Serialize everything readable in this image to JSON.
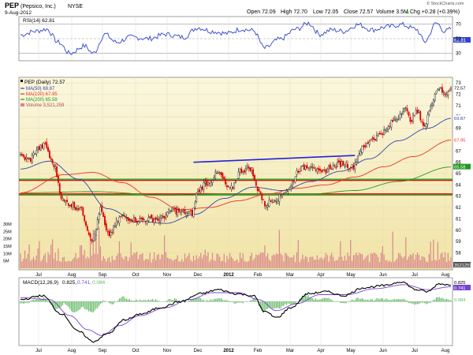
{
  "header": {
    "ticker": "PEP",
    "company": "(Pepsico, Inc.)",
    "exchange": "NYSE",
    "date": "9-Aug-2012",
    "open": "Open 72.09",
    "high": "High 72.70",
    "low": "Low 72.05",
    "close": "Close 72.57",
    "volume": "Volume 3.5M",
    "chg": "Chg +0.28 (+0.39%)",
    "chg_arrow": "▲",
    "brand": "© StockCharts.com"
  },
  "legends": {
    "rsi": "RSI(14) 62.81",
    "main": "PEP (Daily) 72.57",
    "ma50": "MA(50) 69.87",
    "ma100": "MA(100) 67.95",
    "ma200": "MA(200) 65.58",
    "volume": "Volume 3,521,259",
    "macd_name": "MACD(12,26,9)",
    "macd_v1": "0.825,",
    "macd_v2": "0.741,",
    "macd_v3": "0.084"
  },
  "badges": {
    "rsi_last": "62.81",
    "price_last": "72.57",
    "ma50": "69.87",
    "ma100": "67.95",
    "ma200": "65.58",
    "volume": "3521259",
    "macd": "0.825",
    "signal": "0.741",
    "hist": "0.084"
  },
  "colors": {
    "price_bg_top": "#fbf7df",
    "price_bg_bottom": "#f1e4a6",
    "up": "#111111",
    "down": "#e10000",
    "ma50": "#3344aa",
    "ma100": "#ee3322",
    "ma200": "#229922",
    "volume": "#d9868c",
    "rsi": "#3344cc",
    "trend": "#2222dd",
    "hline_red": "#ee0000",
    "hline_green": "#22aa22",
    "macd": "#000000",
    "macd_signal": "#7744cc",
    "macd_hist": "#66bb66"
  },
  "chart_data": {
    "type": "candlestick",
    "title": "PEP (Pepsico, Inc.) NYSE",
    "x_tick_labels": [
      "Jul",
      "Aug",
      "Sep",
      "Oct",
      "Nov",
      "Dec",
      "2012",
      "Feb",
      "Mar",
      "Apr",
      "May",
      "Jun",
      "Jul",
      "Aug"
    ],
    "price_axis_labels": [
      "58",
      "59",
      "60",
      "61",
      "62",
      "63",
      "64",
      "65",
      "66",
      "67",
      "68",
      "69",
      "70",
      "71",
      "72",
      "73"
    ],
    "volume_axis_labels": [
      "5M",
      "10M",
      "15M",
      "20M",
      "25M",
      "30M"
    ],
    "rsi_axis_labels": [
      "30",
      "50",
      "70"
    ],
    "ylim_price": [
      56.5,
      73.5
    ],
    "ylim_rsi": [
      20,
      80
    ],
    "ylim_macd": [
      -2.2,
      1.2
    ],
    "price_anchors": [
      {
        "t": 0,
        "p": 66.5
      },
      {
        "t": 6,
        "p": 66.2
      },
      {
        "t": 12,
        "p": 67.2
      },
      {
        "t": 17,
        "p": 67.5
      },
      {
        "t": 22,
        "p": 65.9
      },
      {
        "t": 30,
        "p": 62.5
      },
      {
        "t": 40,
        "p": 62.0
      },
      {
        "t": 50,
        "p": 59.2
      },
      {
        "t": 55,
        "p": 61.8
      },
      {
        "t": 60,
        "p": 59.6
      },
      {
        "t": 70,
        "p": 61.2
      },
      {
        "t": 80,
        "p": 60.9
      },
      {
        "t": 95,
        "p": 61.0
      },
      {
        "t": 105,
        "p": 61.7
      },
      {
        "t": 118,
        "p": 61.5
      },
      {
        "t": 122,
        "p": 63.5
      },
      {
        "t": 128,
        "p": 64.2
      },
      {
        "t": 136,
        "p": 65.0
      },
      {
        "t": 144,
        "p": 63.6
      },
      {
        "t": 152,
        "p": 65.3
      },
      {
        "t": 158,
        "p": 65.5
      },
      {
        "t": 163,
        "p": 63.7
      },
      {
        "t": 168,
        "p": 62.3
      },
      {
        "t": 176,
        "p": 62.8
      },
      {
        "t": 184,
        "p": 63.6
      },
      {
        "t": 192,
        "p": 65.4
      },
      {
        "t": 200,
        "p": 65.8
      },
      {
        "t": 206,
        "p": 65.0
      },
      {
        "t": 214,
        "p": 65.6
      },
      {
        "t": 222,
        "p": 65.9
      },
      {
        "t": 228,
        "p": 65.6
      },
      {
        "t": 235,
        "p": 67.2
      },
      {
        "t": 242,
        "p": 68.1
      },
      {
        "t": 250,
        "p": 68.7
      },
      {
        "t": 258,
        "p": 69.8
      },
      {
        "t": 264,
        "p": 70.8
      },
      {
        "t": 268,
        "p": 69.8
      },
      {
        "t": 273,
        "p": 70.4
      },
      {
        "t": 278,
        "p": 69.2
      },
      {
        "t": 283,
        "p": 71.4
      },
      {
        "t": 287,
        "p": 72.6
      },
      {
        "t": 292,
        "p": 72.0
      },
      {
        "t": 296,
        "p": 72.57
      }
    ],
    "ma50_anchors": [
      {
        "t": 0,
        "p": 65.4
      },
      {
        "t": 20,
        "p": 66.1
      },
      {
        "t": 40,
        "p": 64.5
      },
      {
        "t": 60,
        "p": 61.9
      },
      {
        "t": 80,
        "p": 60.8
      },
      {
        "t": 100,
        "p": 60.6
      },
      {
        "t": 120,
        "p": 61.4
      },
      {
        "t": 140,
        "p": 62.8
      },
      {
        "t": 160,
        "p": 63.8
      },
      {
        "t": 180,
        "p": 63.5
      },
      {
        "t": 200,
        "p": 64.3
      },
      {
        "t": 220,
        "p": 65.2
      },
      {
        "t": 240,
        "p": 66.3
      },
      {
        "t": 260,
        "p": 67.9
      },
      {
        "t": 280,
        "p": 69.0
      },
      {
        "t": 296,
        "p": 69.87
      }
    ],
    "ma100_anchors": [
      {
        "t": 0,
        "p": 63.3
      },
      {
        "t": 30,
        "p": 64.9
      },
      {
        "t": 50,
        "p": 65.1
      },
      {
        "t": 70,
        "p": 64.2
      },
      {
        "t": 90,
        "p": 62.9
      },
      {
        "t": 110,
        "p": 61.8
      },
      {
        "t": 130,
        "p": 62.0
      },
      {
        "t": 150,
        "p": 62.6
      },
      {
        "t": 170,
        "p": 63.2
      },
      {
        "t": 190,
        "p": 63.7
      },
      {
        "t": 210,
        "p": 64.0
      },
      {
        "t": 230,
        "p": 64.7
      },
      {
        "t": 250,
        "p": 65.6
      },
      {
        "t": 270,
        "p": 66.5
      },
      {
        "t": 296,
        "p": 67.95
      }
    ],
    "ma200_anchors": [
      {
        "t": 0,
        "p": 63.3
      },
      {
        "t": 50,
        "p": 63.4
      },
      {
        "t": 100,
        "p": 63.1
      },
      {
        "t": 150,
        "p": 63.2
      },
      {
        "t": 200,
        "p": 63.2
      },
      {
        "t": 230,
        "p": 63.5
      },
      {
        "t": 260,
        "p": 64.3
      },
      {
        "t": 296,
        "p": 65.58
      }
    ],
    "rsi_anchors": [
      {
        "t": 0,
        "p": 55
      },
      {
        "t": 10,
        "p": 60
      },
      {
        "t": 18,
        "p": 63
      },
      {
        "t": 26,
        "p": 45
      },
      {
        "t": 34,
        "p": 30
      },
      {
        "t": 44,
        "p": 40
      },
      {
        "t": 50,
        "p": 30
      },
      {
        "t": 58,
        "p": 56
      },
      {
        "t": 66,
        "p": 45
      },
      {
        "t": 76,
        "p": 52
      },
      {
        "t": 88,
        "p": 50
      },
      {
        "t": 100,
        "p": 56
      },
      {
        "t": 112,
        "p": 52
      },
      {
        "t": 122,
        "p": 65
      },
      {
        "t": 132,
        "p": 60
      },
      {
        "t": 142,
        "p": 57
      },
      {
        "t": 152,
        "p": 63
      },
      {
        "t": 160,
        "p": 61
      },
      {
        "t": 168,
        "p": 37
      },
      {
        "t": 178,
        "p": 49
      },
      {
        "t": 190,
        "p": 63
      },
      {
        "t": 198,
        "p": 71
      },
      {
        "t": 206,
        "p": 56
      },
      {
        "t": 214,
        "p": 62
      },
      {
        "t": 222,
        "p": 60
      },
      {
        "t": 232,
        "p": 69
      },
      {
        "t": 242,
        "p": 62
      },
      {
        "t": 252,
        "p": 66
      },
      {
        "t": 262,
        "p": 69
      },
      {
        "t": 272,
        "p": 63
      },
      {
        "t": 278,
        "p": 46
      },
      {
        "t": 286,
        "p": 71
      },
      {
        "t": 292,
        "p": 60
      },
      {
        "t": 296,
        "p": 62.81
      }
    ],
    "macd_anchors": [
      {
        "t": 0,
        "p": 0.1
      },
      {
        "t": 15,
        "p": 0.3
      },
      {
        "t": 28,
        "p": -0.6
      },
      {
        "t": 40,
        "p": -1.5
      },
      {
        "t": 50,
        "p": -2.0
      },
      {
        "t": 60,
        "p": -1.6
      },
      {
        "t": 72,
        "p": -0.9
      },
      {
        "t": 84,
        "p": -0.6
      },
      {
        "t": 96,
        "p": -0.3
      },
      {
        "t": 110,
        "p": 0.0
      },
      {
        "t": 124,
        "p": 0.4
      },
      {
        "t": 136,
        "p": 0.6
      },
      {
        "t": 148,
        "p": 0.4
      },
      {
        "t": 160,
        "p": 0.3
      },
      {
        "t": 168,
        "p": -0.5
      },
      {
        "t": 176,
        "p": -0.8
      },
      {
        "t": 186,
        "p": -0.3
      },
      {
        "t": 198,
        "p": 0.4
      },
      {
        "t": 210,
        "p": 0.5
      },
      {
        "t": 222,
        "p": 0.3
      },
      {
        "t": 236,
        "p": 0.7
      },
      {
        "t": 250,
        "p": 0.8
      },
      {
        "t": 262,
        "p": 1.0
      },
      {
        "t": 272,
        "p": 0.6
      },
      {
        "t": 280,
        "p": 0.5
      },
      {
        "t": 288,
        "p": 0.9
      },
      {
        "t": 296,
        "p": 0.825
      }
    ],
    "signal_anchors": [
      {
        "t": 0,
        "p": 0.2
      },
      {
        "t": 20,
        "p": 0.1
      },
      {
        "t": 34,
        "p": -0.7
      },
      {
        "t": 46,
        "p": -1.4
      },
      {
        "t": 56,
        "p": -1.7
      },
      {
        "t": 68,
        "p": -1.2
      },
      {
        "t": 82,
        "p": -0.7
      },
      {
        "t": 100,
        "p": -0.3
      },
      {
        "t": 116,
        "p": 0.1
      },
      {
        "t": 132,
        "p": 0.45
      },
      {
        "t": 150,
        "p": 0.45
      },
      {
        "t": 164,
        "p": 0.1
      },
      {
        "t": 176,
        "p": -0.45
      },
      {
        "t": 190,
        "p": -0.1
      },
      {
        "t": 206,
        "p": 0.35
      },
      {
        "t": 224,
        "p": 0.35
      },
      {
        "t": 244,
        "p": 0.65
      },
      {
        "t": 264,
        "p": 0.85
      },
      {
        "t": 280,
        "p": 0.6
      },
      {
        "t": 296,
        "p": 0.741
      }
    ],
    "trendline": [
      {
        "t": 119,
        "p": 66.0
      },
      {
        "t": 230,
        "p": 66.6
      }
    ],
    "support_lines": [
      {
        "price": 64.4,
        "color": "red"
      },
      {
        "price": 63.2,
        "color": "red"
      },
      {
        "price": 64.5,
        "color": "green"
      },
      {
        "price": 63.1,
        "color": "green"
      }
    ],
    "n_bars": 297
  }
}
